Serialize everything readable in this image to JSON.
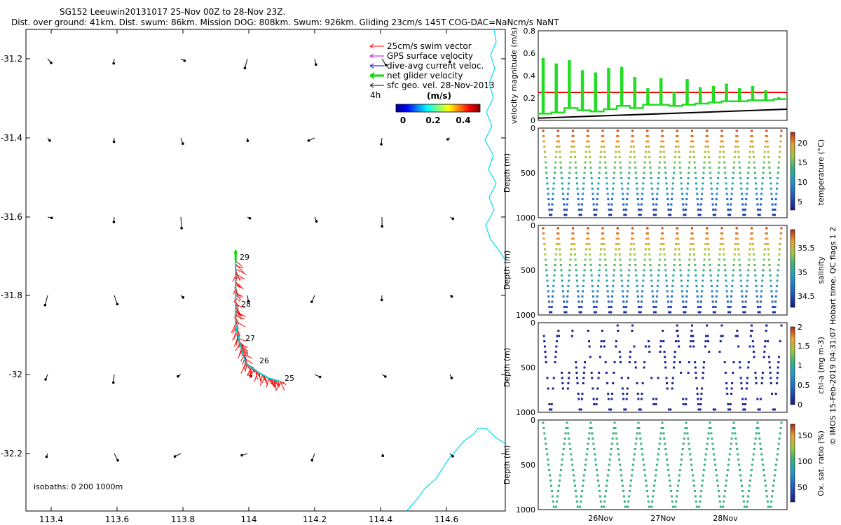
{
  "header": {
    "title": "SG152 Leeuwin20131017 25-Nov 00Z to 28-Nov 23Z.",
    "subtitle": "Dist. over ground: 41km. Dist. swum: 86km. Mission DOG: 808km. Swum: 926km. Gliding 23cm/s 145T COG-DAC=NaNcm/s NaNT"
  },
  "map": {
    "legend": [
      {
        "label": "25cm/s swim vector",
        "color": "#ff0000"
      },
      {
        "label": "GPS surface velocity",
        "color": "#cc00cc"
      },
      {
        "label": "dive-avg current veloc.",
        "color": "#0000cc"
      },
      {
        "label": "net glider velocity",
        "color": "#00dd00"
      },
      {
        "label": "sfc geo. vel. 28-Nov-2013",
        "color": "#000000"
      }
    ],
    "time_label": "4h",
    "colorbar_title": "(m/s)",
    "colorbar_ticks": [
      "0",
      "0.2",
      "0.4"
    ],
    "isobaths": "isobaths: 0   200  1000m",
    "x_ticks": [
      "113.4",
      "113.6",
      "113.8",
      "114",
      "114.2",
      "114.4",
      "114.6"
    ],
    "y_ticks": [
      "-31.2",
      "-31.4",
      "-31.6",
      "-31.8",
      "-32",
      "-32.2"
    ],
    "dive_labels": [
      "29",
      "28",
      "27",
      "26",
      "25"
    ]
  },
  "side_label": "© IMOS 15-Feb-2019 04:31:07 Hobart time. QC flags 1  2",
  "panels": {
    "velocity": {
      "ylabel": "velocity magnitude (m/s)",
      "yticks": [
        "0",
        "0.2",
        "0.4",
        "0.6",
        "0.8"
      ]
    },
    "temperature": {
      "ylabel": "Depth (m)",
      "cblabel": "temperature (°C)",
      "cbticks": [
        "5",
        "10",
        "15",
        "20"
      ]
    },
    "salinity": {
      "ylabel": "Depth (m)",
      "cblabel": "salinity",
      "cbticks": [
        "34.5",
        "35",
        "35.5"
      ]
    },
    "chla": {
      "ylabel": "Depth (m)",
      "cblabel": "chl-a (mg m-3)",
      "cbticks": [
        "0",
        "0.5",
        "1",
        "1.5",
        "2"
      ]
    },
    "oxygen": {
      "ylabel": "Depth (m)",
      "cblabel": "Ox. sat. ratio (%)",
      "cbticks": [
        "50",
        "100",
        "150"
      ]
    },
    "depth_ticks": [
      "0",
      "500",
      "1000"
    ],
    "x_dates": [
      "26Nov",
      "27Nov",
      "28Nov"
    ]
  },
  "chart_data": [
    {
      "type": "scatter",
      "title": "SG152 Leeuwin20131017 25-Nov 00Z to 28-Nov 23Z.",
      "xlabel": "",
      "ylabel": "",
      "xlim": [
        113.33,
        114.77
      ],
      "ylim": [
        -32.35,
        -31.08
      ],
      "series": [
        {
          "name": "net glider velocity",
          "x": [
            113.96,
            113.96,
            113.96,
            113.96,
            113.97,
            113.98,
            113.99,
            114.02,
            114.06,
            114.1
          ],
          "y": [
            -31.69,
            -31.75,
            -31.81,
            -31.86,
            -31.9,
            -31.93,
            -31.96,
            -31.98,
            -32.0,
            -32.01
          ]
        }
      ],
      "dives": [
        25,
        26,
        27,
        28,
        29
      ]
    },
    {
      "type": "line",
      "ylabel": "velocity magnitude (m/s)",
      "ylim": [
        0,
        0.8
      ],
      "series": [
        {
          "name": "25cm/s swim vector",
          "values": [
            0.25,
            0.25
          ]
        },
        {
          "name": "net glider velocity",
          "values": [
            0.06,
            0.55,
            0.07,
            0.5,
            0.11,
            0.53,
            0.09,
            0.44,
            0.08,
            0.42,
            0.1,
            0.46,
            0.13,
            0.47,
            0.11,
            0.38,
            0.14,
            0.28,
            0.14,
            0.37,
            0.13,
            0.25,
            0.14,
            0.36,
            0.15,
            0.29,
            0.16,
            0.3,
            0.17,
            0.32,
            0.17,
            0.28,
            0.18,
            0.3,
            0.18,
            0.26,
            0.19,
            0.2
          ]
        },
        {
          "name": "sfc geo. vel. 28-Nov-2013",
          "values": [
            0.02,
            0.1
          ]
        }
      ]
    },
    {
      "type": "scatter",
      "ylabel": "Depth (m)",
      "colorbar": "temperature (°C)",
      "ylim": [
        1000,
        0
      ],
      "cbar_range": [
        3,
        23
      ],
      "surface": 23,
      "bottom": 3
    },
    {
      "type": "scatter",
      "ylabel": "Depth (m)",
      "colorbar": "salinity",
      "ylim": [
        1000,
        0
      ],
      "cbar_range": [
        34.3,
        35.9
      ],
      "surface": 35.9,
      "bottom": 34.3
    },
    {
      "type": "scatter",
      "ylabel": "Depth (m)",
      "colorbar": "chl-a (mg m-3)",
      "ylim": [
        1000,
        0
      ],
      "cbar_range": [
        0,
        2
      ],
      "typical": 0.05
    },
    {
      "type": "scatter",
      "ylabel": "Depth (m)",
      "colorbar": "Ox. sat. ratio (%)",
      "ylim": [
        1000,
        0
      ],
      "cbar_range": [
        20,
        175
      ],
      "typical": 95
    }
  ]
}
